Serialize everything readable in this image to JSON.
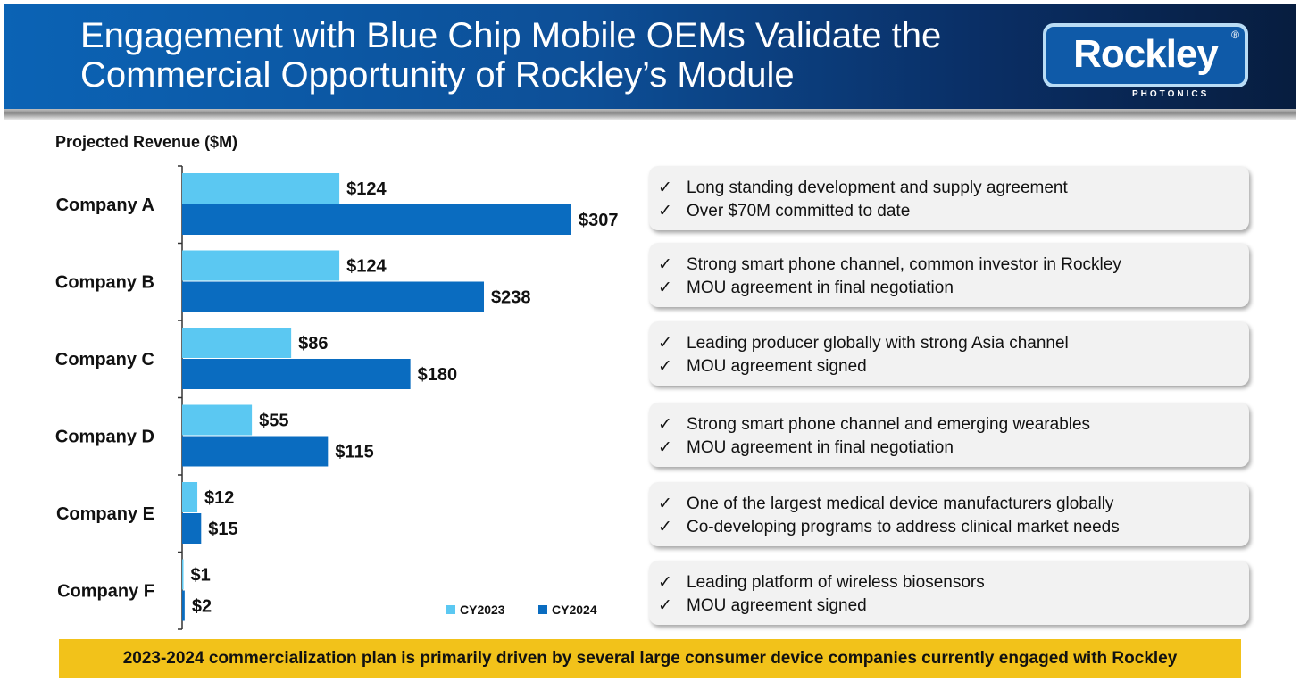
{
  "header": {
    "title_line1": "Engagement with Blue Chip Mobile OEMs Validate the",
    "title_line2": "Commercial Opportunity of Rockley’s Module",
    "logo_word": "Rockley",
    "logo_reg": "®",
    "logo_sub": "PHOTONICS"
  },
  "colors": {
    "cy2023": "#5bc8f2",
    "cy2024": "#0a6cc0",
    "banner": "#f2c21a",
    "header_blue": "#0d4f97"
  },
  "chart_data": {
    "type": "bar",
    "orientation": "horizontal",
    "title": "Projected Revenue ($M)",
    "categories": [
      "Company A",
      "Company B",
      "Company C",
      "Company D",
      "Company E",
      "Company F"
    ],
    "series": [
      {
        "name": "CY2023",
        "values": [
          124,
          124,
          86,
          55,
          12,
          1
        ],
        "labels": [
          "$124",
          "$124",
          "$86",
          "$55",
          "$12",
          "$1"
        ]
      },
      {
        "name": "CY2024",
        "values": [
          307,
          238,
          180,
          115,
          15,
          2
        ],
        "labels": [
          "$307",
          "$238",
          "$180",
          "$115",
          "$15",
          "$2"
        ]
      }
    ],
    "legend_position": "bottom-right",
    "grid": false
  },
  "boxes": [
    {
      "lines": [
        "Long standing development and supply agreement",
        "Over $70M committed to date"
      ]
    },
    {
      "lines": [
        "Strong smart phone channel, common investor in Rockley",
        "MOU agreement in final negotiation"
      ]
    },
    {
      "lines": [
        "Leading producer globally with strong Asia channel",
        "MOU agreement signed"
      ]
    },
    {
      "lines": [
        "Strong smart phone channel and emerging wearables",
        "MOU agreement in final negotiation"
      ]
    },
    {
      "lines": [
        "One of the largest medical device manufacturers globally",
        "Co-developing programs to address clinical market needs"
      ]
    },
    {
      "lines": [
        "Leading platform of wireless biosensors",
        "MOU agreement signed"
      ]
    }
  ],
  "check_mark": "✓",
  "banner": "2023-2024 commercialization plan is primarily driven by several large consumer device companies currently engaged with Rockley"
}
